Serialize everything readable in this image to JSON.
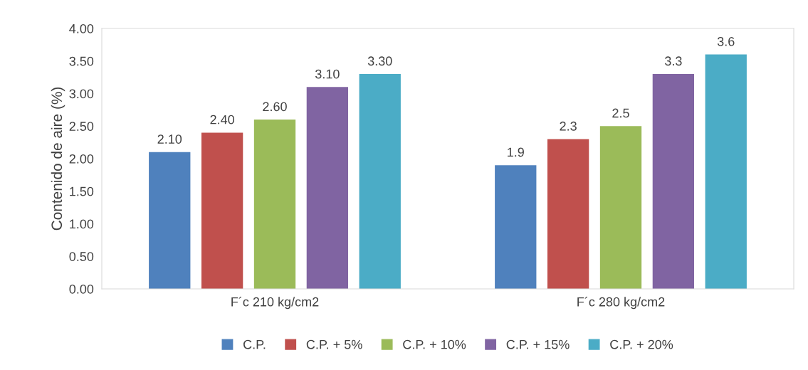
{
  "chart_data": {
    "type": "bar",
    "ylabel": "Contenido de aire (%)",
    "categories": [
      "F´c 210 kg/cm2",
      "F´c 280 kg/cm2"
    ],
    "series": [
      {
        "name": "C.P.",
        "color": "#4f81bd",
        "values": [
          2.1,
          1.9
        ],
        "value_labels": [
          "2.10",
          "1.9"
        ]
      },
      {
        "name": "C.P. + 5%",
        "color": "#c0504d",
        "values": [
          2.4,
          2.3
        ],
        "value_labels": [
          "2.40",
          "2.3"
        ]
      },
      {
        "name": "C.P. + 10%",
        "color": "#9bbb59",
        "values": [
          2.6,
          2.5
        ],
        "value_labels": [
          "2.60",
          "2.5"
        ]
      },
      {
        "name": "C.P. + 15%",
        "color": "#8064a2",
        "values": [
          3.1,
          3.3
        ],
        "value_labels": [
          "3.10",
          "3.3"
        ]
      },
      {
        "name": "C.P. + 20%",
        "color": "#4bacc6",
        "values": [
          3.3,
          3.6
        ],
        "value_labels": [
          "3.30",
          "3.6"
        ]
      }
    ],
    "ylim": [
      0,
      4
    ],
    "yticks": [
      {
        "value": 0,
        "label": "0.00"
      },
      {
        "value": 0.5,
        "label": "0.50"
      },
      {
        "value": 1,
        "label": "1.00"
      },
      {
        "value": 1.5,
        "label": "1.50"
      },
      {
        "value": 2,
        "label": "2.00"
      },
      {
        "value": 2.5,
        "label": "2.50"
      },
      {
        "value": 3,
        "label": "3.00"
      },
      {
        "value": 3.5,
        "label": "3.50"
      },
      {
        "value": 4,
        "label": "4.00"
      }
    ],
    "grid": false,
    "legend": "bottom"
  }
}
